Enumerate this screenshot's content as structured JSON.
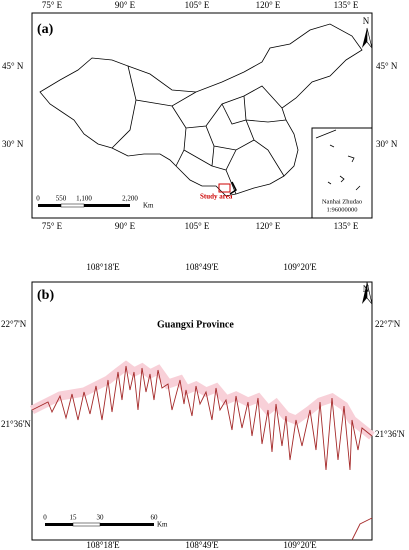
{
  "panel_a": {
    "label": "(a)",
    "lon_labels": [
      "75° E",
      "90° E",
      "105° E",
      "120° E",
      "135° E"
    ],
    "lat_labels": [
      "45° N",
      "30° N"
    ],
    "north": "N",
    "study_area": "Study area",
    "inset": {
      "name": "Nanhai Zhudao",
      "scale": "1:96000000"
    },
    "scale_bar": {
      "ticks": [
        "0",
        "550",
        "1,100",
        "2,200"
      ],
      "unit": "Km"
    }
  },
  "panel_b": {
    "label": "(b)",
    "lon_labels": [
      "108°18'E",
      "108°49'E",
      "109°20'E"
    ],
    "lat_labels": [
      "22°7'N",
      "21°36'N"
    ],
    "north": "N",
    "region": "Guangxi Province",
    "scale_bar": {
      "ticks": [
        "0",
        "15",
        "30",
        "60"
      ],
      "unit": "Km"
    }
  }
}
